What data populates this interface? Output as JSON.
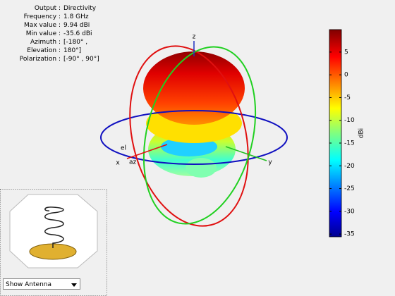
{
  "info": [
    {
      "label": "Output :",
      "value": "Directivity"
    },
    {
      "label": "Frequency :",
      "value": "1.8 GHz"
    },
    {
      "label": "Max value :",
      "value": "9.94 dBi"
    },
    {
      "label": "Min value :",
      "value": "-35.6 dBi"
    },
    {
      "label": "Azimuth :",
      "value": "[-180° ,"
    },
    {
      "label": "Elevation :",
      "value": "180°]"
    },
    {
      "label": "Polarization :",
      "value": "[-90° , 90°]"
    }
  ],
  "axes": {
    "x": "x",
    "y": "y",
    "z": "z",
    "az": "az",
    "el": "el"
  },
  "colorbar": {
    "label": "dBi",
    "lim": [
      -35.6,
      9.94
    ],
    "ticks": [
      5,
      0,
      -5,
      -10,
      -15,
      -20,
      -25,
      -30,
      -35
    ]
  },
  "dropdown": "Show Antenna"
}
